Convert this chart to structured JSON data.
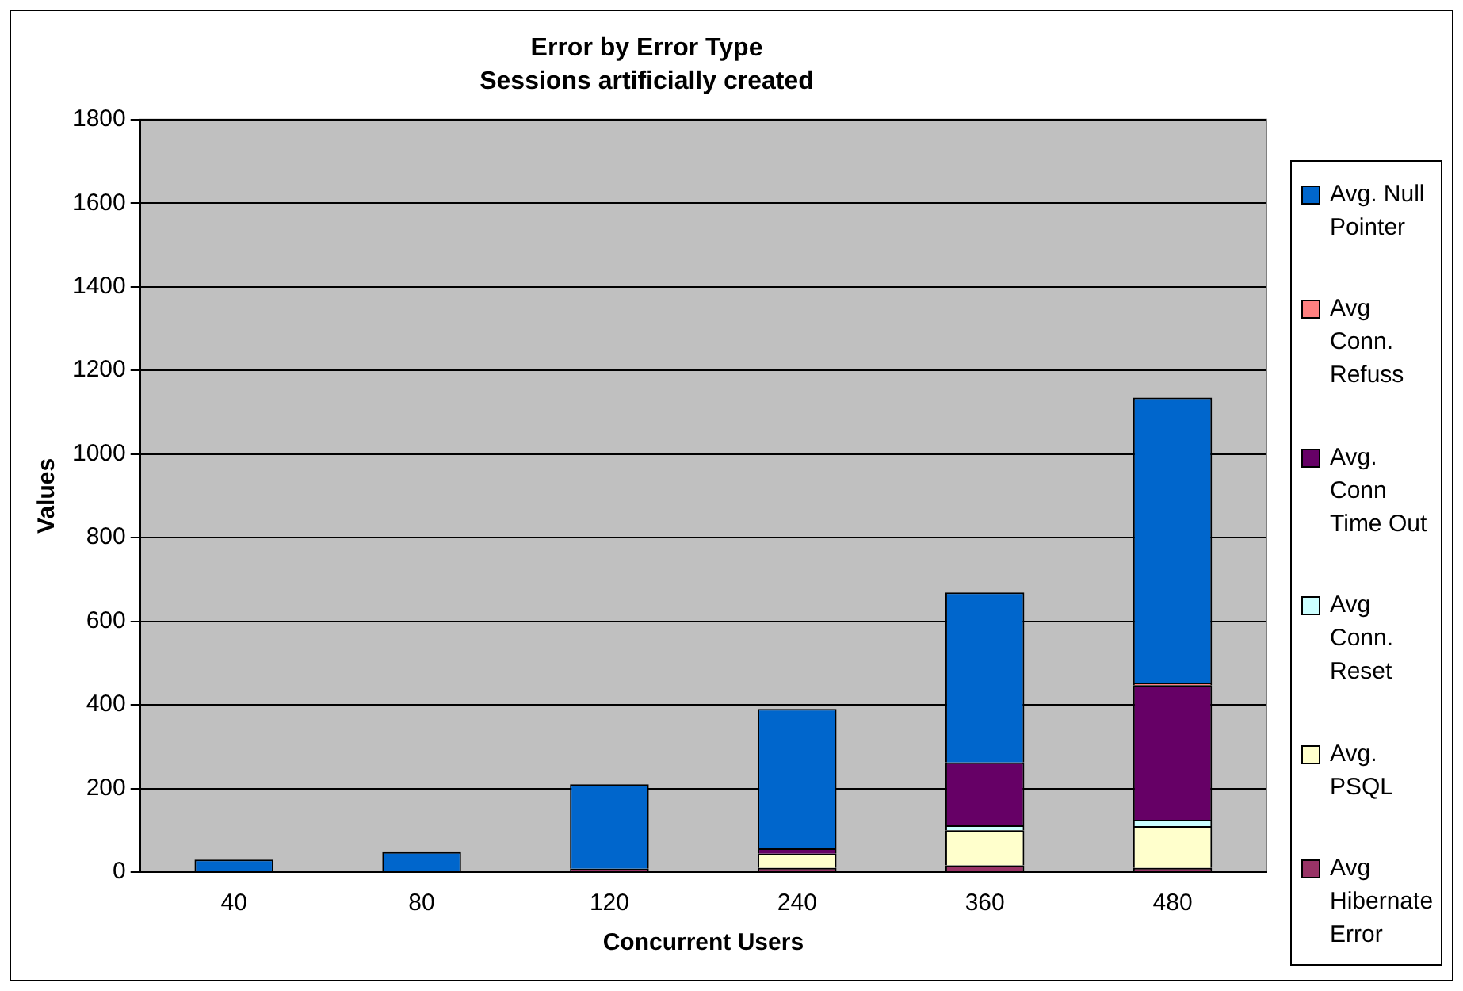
{
  "chart_data": {
    "type": "bar",
    "title": "Error by Error Type",
    "subtitle": "Sessions artificially created",
    "xlabel": "Concurrent Users",
    "ylabel": "Values",
    "categories": [
      "40",
      "80",
      "120",
      "240",
      "360",
      "480"
    ],
    "stacked": true,
    "ylim": [
      0,
      1800
    ],
    "yticks": [
      0,
      200,
      400,
      600,
      800,
      1000,
      1200,
      1400,
      1600,
      1800
    ],
    "grid": "y",
    "legend": "right",
    "series": [
      {
        "name": "Avg Hibernate Error",
        "color": "#993366",
        "values": [
          0,
          0,
          8,
          10,
          16,
          10
        ]
      },
      {
        "name": "Avg. PSQL",
        "color": "#ffffcc",
        "values": [
          0,
          0,
          0,
          34,
          84,
          100
        ]
      },
      {
        "name": "Avg Conn. Reset",
        "color": "#ccffff",
        "values": [
          0,
          0,
          0,
          0,
          12,
          15
        ]
      },
      {
        "name": "Avg. Conn Time Out",
        "color": "#660066",
        "values": [
          0,
          0,
          0,
          13,
          150,
          322
        ]
      },
      {
        "name": "Avg Conn. Refuss",
        "color": "#ff8080",
        "values": [
          0,
          0,
          0,
          0,
          0,
          5
        ]
      },
      {
        "name": "Avg. Null Pointer",
        "color": "#0066cc",
        "values": [
          30,
          48,
          202,
          333,
          407,
          683
        ]
      }
    ]
  }
}
